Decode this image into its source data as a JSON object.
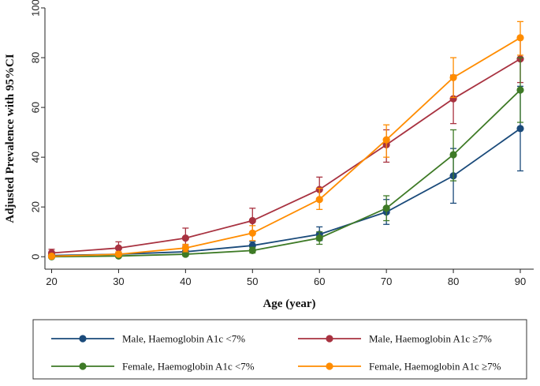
{
  "chart_data": {
    "type": "line",
    "title": "",
    "xlabel": "Age (year)",
    "ylabel": "Adjusted Prevalence with 95%CI",
    "x": [
      20,
      30,
      40,
      50,
      60,
      70,
      80,
      90
    ],
    "xlim": [
      19,
      92
    ],
    "ylim": [
      -5,
      100
    ],
    "yticks": [
      0,
      20,
      40,
      60,
      80,
      100
    ],
    "xticks": [
      20,
      30,
      40,
      50,
      60,
      70,
      80,
      90
    ],
    "grid": false,
    "legend_position": "bottom",
    "series": [
      {
        "name": "Male, Haemoglobin A1c <7%",
        "color": "#1a4a7a",
        "values": [
          0.5,
          1.0,
          2.0,
          4.5,
          9.0,
          18.0,
          32.5,
          51.5
        ],
        "ci_low": [
          0.0,
          0.3,
          1.2,
          3.2,
          6.5,
          13.0,
          21.5,
          34.5
        ],
        "ci_high": [
          1.0,
          1.8,
          3.0,
          6.0,
          12.0,
          23.0,
          43.5,
          68.5
        ]
      },
      {
        "name": "Male, Haemoglobin A1c ≥7%",
        "color": "#a83240",
        "values": [
          1.5,
          3.5,
          7.5,
          14.5,
          27.0,
          45.0,
          63.5,
          79.5
        ],
        "ci_low": [
          0.2,
          1.5,
          4.5,
          10.0,
          22.5,
          38.0,
          53.5,
          70.0
        ],
        "ci_high": [
          3.0,
          6.0,
          11.5,
          19.5,
          32.0,
          51.0,
          73.0,
          88.5
        ]
      },
      {
        "name": "Female, Haemoglobin A1c <7%",
        "color": "#3e7a26",
        "values": [
          0.0,
          0.3,
          1.0,
          2.5,
          7.5,
          19.5,
          41.0,
          67.0
        ],
        "ci_low": [
          0.0,
          0.0,
          0.3,
          1.5,
          5.0,
          14.5,
          30.5,
          54.0
        ],
        "ci_high": [
          0.5,
          0.8,
          1.8,
          3.8,
          10.0,
          24.5,
          51.0,
          80.0
        ]
      },
      {
        "name": "Female, Haemoglobin A1c ≥7%",
        "color": "#ff8c00",
        "values": [
          0.2,
          1.0,
          3.5,
          9.5,
          23.0,
          47.0,
          72.0,
          88.0
        ],
        "ci_low": [
          0.0,
          0.3,
          2.0,
          6.5,
          19.0,
          40.0,
          64.0,
          81.0
        ],
        "ci_high": [
          0.8,
          2.0,
          5.0,
          12.5,
          27.5,
          53.0,
          80.0,
          94.5
        ]
      }
    ]
  }
}
